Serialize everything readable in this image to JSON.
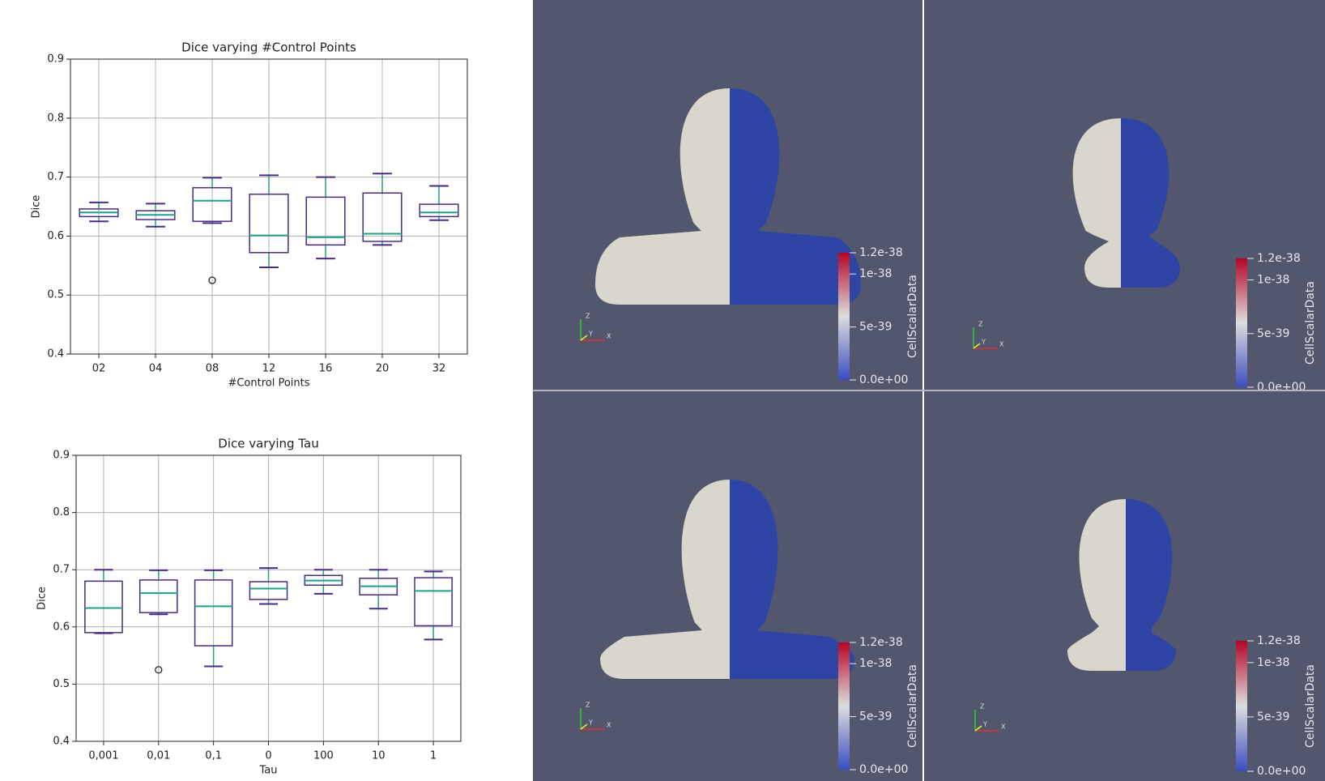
{
  "charts": [
    {
      "type": "box",
      "title": "Dice varying #Control Points",
      "xlabel": "#Control Points",
      "ylabel": "Dice",
      "categories": [
        "02",
        "04",
        "08",
        "12",
        "16",
        "20",
        "32"
      ],
      "boxes": [
        {
          "whislo": 0.625,
          "q1": 0.633,
          "med": 0.64,
          "q3": 0.646,
          "whishi": 0.657
        },
        {
          "whislo": 0.616,
          "q1": 0.628,
          "med": 0.636,
          "q3": 0.643,
          "whishi": 0.655
        },
        {
          "whislo": 0.622,
          "q1": 0.625,
          "med": 0.66,
          "q3": 0.682,
          "whishi": 0.699,
          "fliers": [
            0.525
          ]
        },
        {
          "whislo": 0.547,
          "q1": 0.572,
          "med": 0.601,
          "q3": 0.671,
          "whishi": 0.703
        },
        {
          "whislo": 0.562,
          "q1": 0.585,
          "med": 0.598,
          "q3": 0.666,
          "whishi": 0.7
        },
        {
          "whislo": 0.585,
          "q1": 0.591,
          "med": 0.604,
          "q3": 0.673,
          "whishi": 0.706
        },
        {
          "whislo": 0.627,
          "q1": 0.633,
          "med": 0.64,
          "q3": 0.654,
          "whishi": 0.685
        }
      ],
      "ylim": [
        0.4,
        0.9
      ],
      "yticks": [
        0.4,
        0.5,
        0.6,
        0.7,
        0.8,
        0.9
      ],
      "grid": true,
      "box_color": "#4b2a84",
      "median_color": "#21a08a"
    },
    {
      "type": "box",
      "title": "Dice varying Tau",
      "xlabel": "Tau",
      "ylabel": "Dice",
      "categories": [
        "0,001",
        "0,01",
        "0,1",
        "0",
        "100",
        "10",
        "1"
      ],
      "boxes": [
        {
          "whislo": 0.589,
          "q1": 0.59,
          "med": 0.633,
          "q3": 0.68,
          "whishi": 0.7
        },
        {
          "whislo": 0.622,
          "q1": 0.625,
          "med": 0.659,
          "q3": 0.682,
          "whishi": 0.699,
          "fliers": [
            0.525
          ]
        },
        {
          "whislo": 0.531,
          "q1": 0.567,
          "med": 0.636,
          "q3": 0.682,
          "whishi": 0.699
        },
        {
          "whislo": 0.64,
          "q1": 0.648,
          "med": 0.667,
          "q3": 0.679,
          "whishi": 0.703
        },
        {
          "whislo": 0.658,
          "q1": 0.673,
          "med": 0.681,
          "q3": 0.69,
          "whishi": 0.7
        },
        {
          "whislo": 0.632,
          "q1": 0.656,
          "med": 0.671,
          "q3": 0.685,
          "whishi": 0.7
        },
        {
          "whislo": 0.578,
          "q1": 0.602,
          "med": 0.663,
          "q3": 0.686,
          "whishi": 0.697
        }
      ],
      "ylim": [
        0.4,
        0.9
      ],
      "yticks": [
        0.4,
        0.5,
        0.6,
        0.7,
        0.8,
        0.9
      ],
      "grid": true,
      "box_color": "#4b2a84",
      "median_color": "#21a08a"
    }
  ],
  "renders": {
    "colorbar_title": "CellScalarData",
    "colorbar_lim": [
      0,
      1.2e-38
    ],
    "colorbar_ticks": [
      {
        "value": 0,
        "label": "0.0e+00"
      },
      5e-39,
      1e-38,
      1.2e-38
    ],
    "triad_labels": [
      "Z",
      "Y",
      "X"
    ],
    "background": "#52576e"
  }
}
